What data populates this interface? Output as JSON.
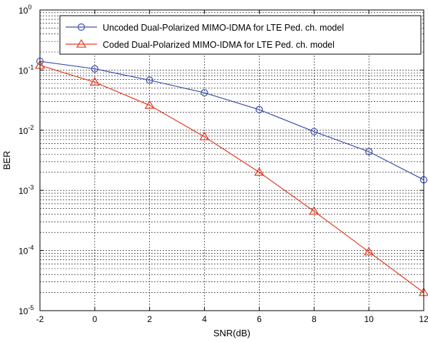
{
  "chart_data": {
    "type": "line",
    "xlabel": "SNR(dB)",
    "ylabel": "BER",
    "xlim": [
      -2,
      12
    ],
    "ylim": [
      1e-05,
      1
    ],
    "yscale": "log",
    "grid": true,
    "legend_position": "top-right",
    "x_ticks": [
      "-2",
      "0",
      "2",
      "4",
      "6",
      "8",
      "10",
      "12"
    ],
    "y_ticks": [
      {
        "base": "10",
        "exp": "-5"
      },
      {
        "base": "10",
        "exp": "-4"
      },
      {
        "base": "10",
        "exp": "-3"
      },
      {
        "base": "10",
        "exp": "-2"
      },
      {
        "base": "10",
        "exp": "-1"
      },
      {
        "base": "10",
        "exp": "0"
      }
    ],
    "x": [
      -2,
      0,
      2,
      4,
      6,
      8,
      10,
      12
    ],
    "series": [
      {
        "name": "Uncoded Dual-Polarized MIMO-IDMA for LTE Ped. ch. model",
        "color": "#3b4fa8",
        "marker": "circle",
        "values": [
          0.14,
          0.105,
          0.068,
          0.042,
          0.022,
          0.0095,
          0.0044,
          0.0015
        ]
      },
      {
        "name": "Coded Dual-Polarized MIMO-IDMA for LTE Ped. ch. model",
        "color": "#e23a22",
        "marker": "triangle",
        "values": [
          0.12,
          0.063,
          0.026,
          0.0078,
          0.002,
          0.00045,
          9.5e-05,
          2e-05
        ]
      }
    ]
  }
}
